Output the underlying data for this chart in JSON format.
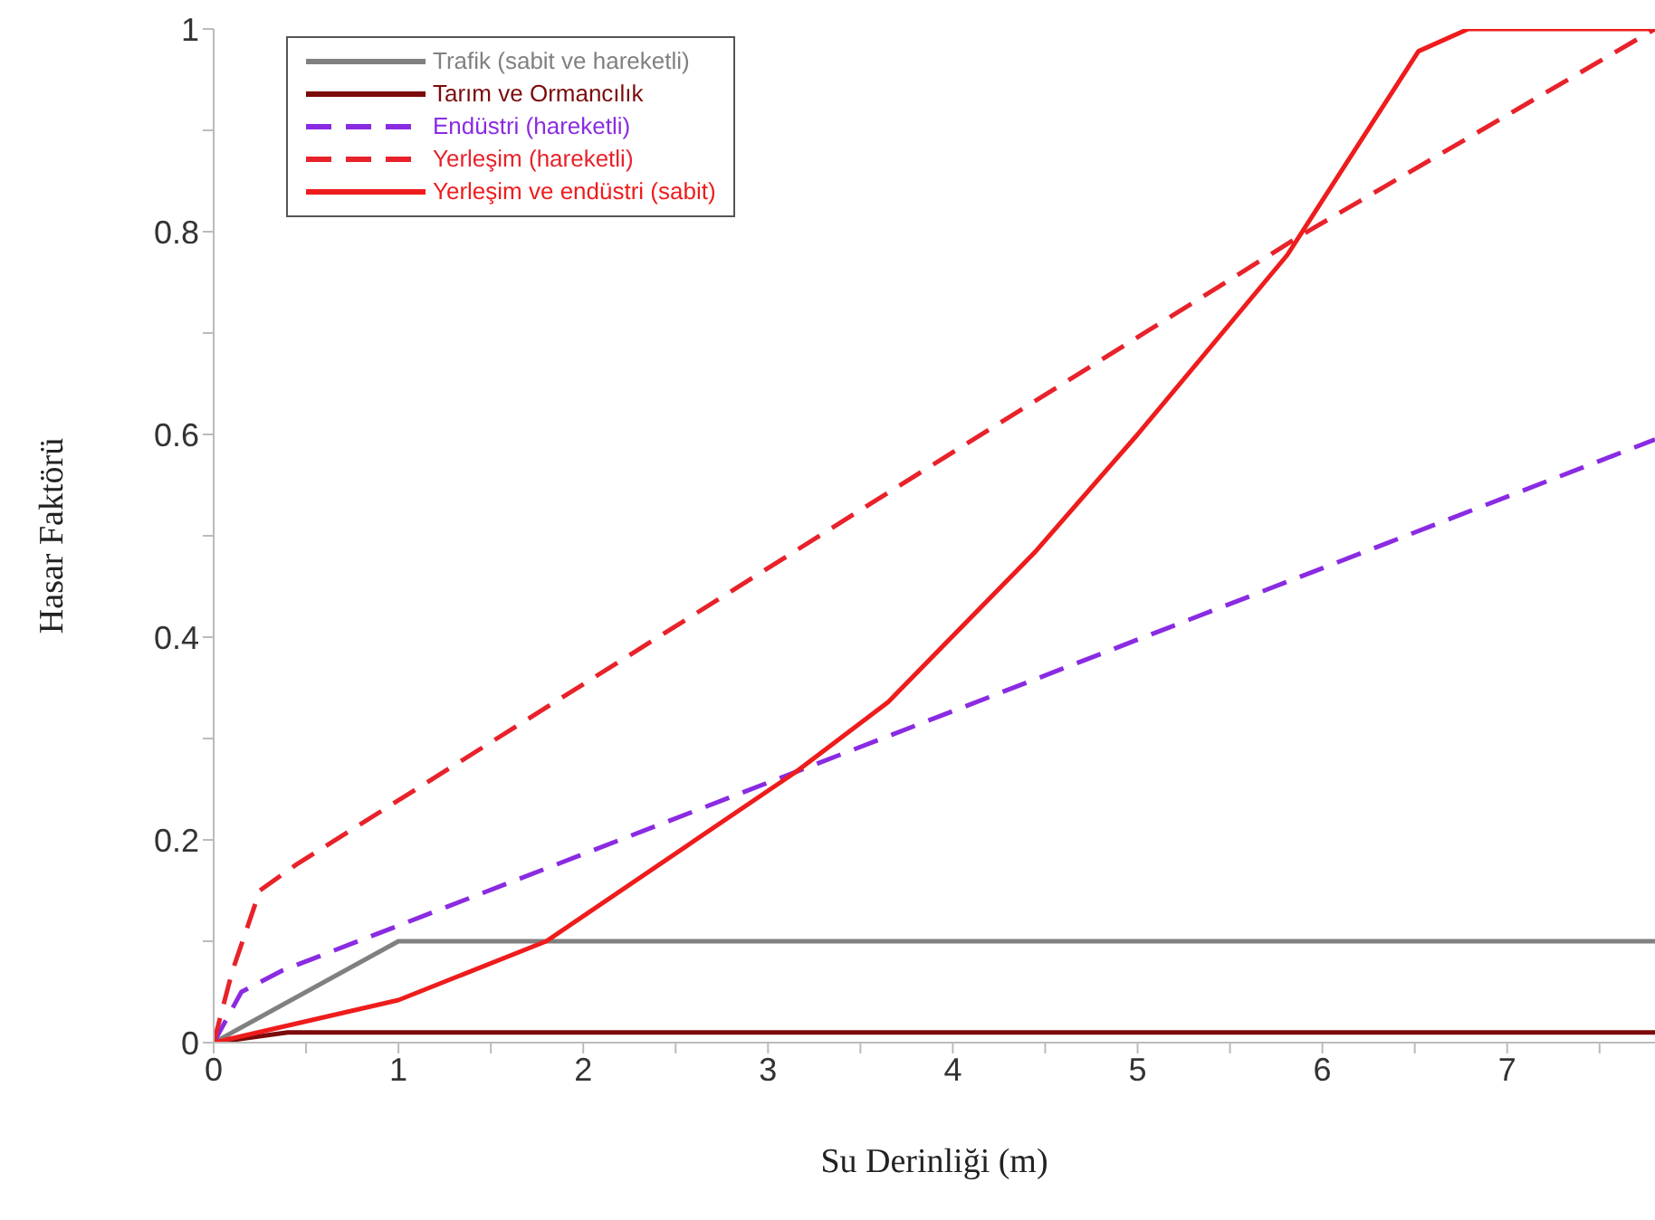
{
  "chart_data": {
    "type": "line",
    "xlabel": "Su Derinliği (m)",
    "ylabel": "Hasar Faktörü",
    "xlim": [
      0,
      7.8
    ],
    "ylim": [
      0,
      1
    ],
    "xticks": [
      0,
      {
        "value": 0.5,
        "label": null
      },
      1,
      {
        "value": 1.5,
        "label": null
      },
      2,
      {
        "value": 2.5,
        "label": null
      },
      3,
      {
        "value": 3.5,
        "label": null
      },
      4,
      {
        "value": 4.5,
        "label": null
      },
      5,
      {
        "value": 5.5,
        "label": null
      },
      6,
      {
        "value": 6.5,
        "label": null
      },
      7,
      {
        "value": 7.5,
        "label": null
      }
    ],
    "yticks": [
      0,
      {
        "value": 0.1,
        "label": null
      },
      0.2,
      {
        "value": 0.3,
        "label": null
      },
      0.4,
      {
        "value": 0.5,
        "label": null
      },
      0.6,
      {
        "value": 0.7,
        "label": null
      },
      0.8,
      {
        "value": 0.9,
        "label": null
      },
      1
    ],
    "grid": false,
    "legend": "top left",
    "marker": "none",
    "series": [
      {
        "name": "Trafik (sabit ve hareketli)",
        "color": "#808080",
        "line_style": "solid",
        "x": [
          0,
          1,
          7.8
        ],
        "values": [
          0,
          0.1,
          0.1
        ]
      },
      {
        "name": "Tarım ve Ormancılık",
        "color": "#7b0a0a",
        "line_style": "solid",
        "x": [
          0,
          0.4,
          7.8
        ],
        "values": [
          0,
          0.01,
          0.01
        ]
      },
      {
        "name": "Endüstri (hareketli)",
        "color": "#8a2be2",
        "line_style": "dashed",
        "x": [
          0,
          0.15,
          0.37,
          7.8
        ],
        "values": [
          0,
          0.05,
          0.071,
          0.595
        ]
      },
      {
        "name": "Yerleşim (hareketli)",
        "color": "#e8222a",
        "line_style": "dashed",
        "x": [
          0,
          0.1,
          0.25,
          0.45,
          3.68,
          5.89,
          7.8
        ],
        "values": [
          0,
          0.07,
          0.15,
          0.176,
          0.546,
          0.797,
          1
        ]
      },
      {
        "name": "Yerleşim ve endüstri (sabit)",
        "color": "#ee1c1c",
        "line_style": "solid",
        "x": [
          0,
          1,
          1.8,
          3.15,
          3.65,
          4.44,
          5,
          5.81,
          6.52,
          6.79,
          7.8
        ],
        "values": [
          0,
          0.042,
          0.1,
          0.267,
          0.336,
          0.483,
          0.6,
          0.777,
          0.978,
          1,
          1
        ]
      }
    ]
  }
}
